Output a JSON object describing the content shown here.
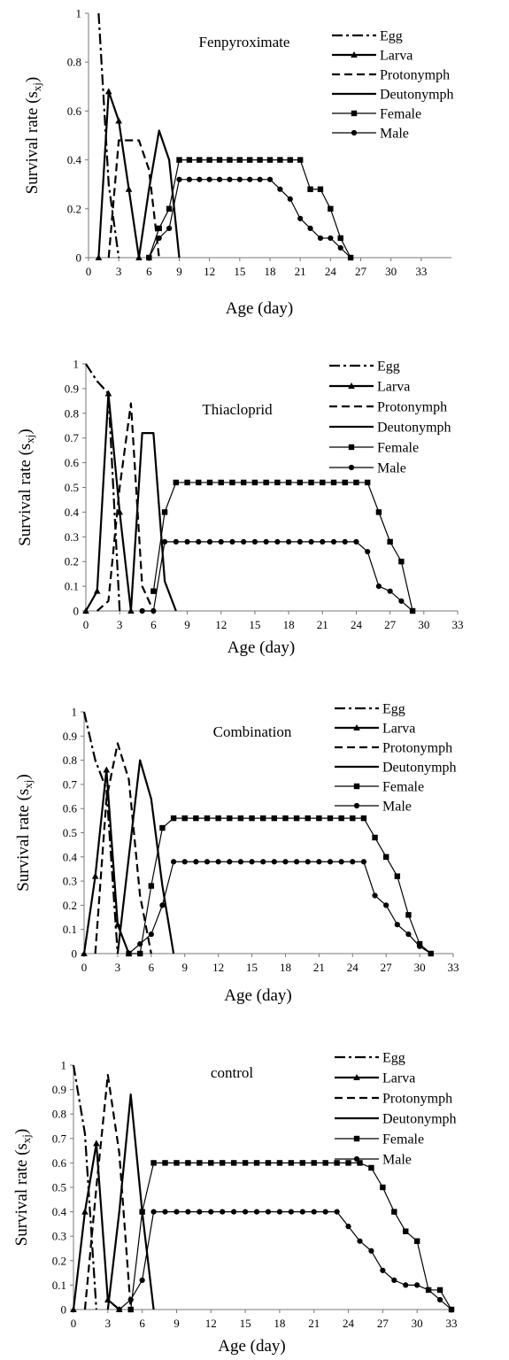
{
  "legend": [
    "Egg",
    "Larva",
    "Protonymph",
    "Deutonymph",
    "Female",
    "Male"
  ],
  "chart_data": [
    {
      "type": "line",
      "title": "Fenpyroximate",
      "xlabel": "Age (day)",
      "ylabel": "Survival rate (s_xj)",
      "xticks": [
        "0",
        "3",
        "6",
        "9",
        "12",
        "15",
        "18",
        "21",
        "24",
        "27",
        "30",
        "33"
      ],
      "yticks": [
        "0",
        "0.2",
        "0.4",
        "0.6",
        "0.8",
        "1"
      ],
      "xlim": [
        0,
        36
      ],
      "ylim": [
        0,
        1
      ],
      "series": [
        {
          "name": "Egg",
          "style": "dashdot",
          "marker": "none",
          "x": [
            1,
            2,
            3
          ],
          "y": [
            1.0,
            0.3,
            0.0
          ]
        },
        {
          "name": "Larva",
          "style": "solid",
          "marker": "triangle",
          "x": [
            1,
            2,
            3,
            4,
            5
          ],
          "y": [
            0.0,
            0.68,
            0.56,
            0.28,
            0.0
          ]
        },
        {
          "name": "Protonymph",
          "style": "dashed",
          "marker": "none",
          "x": [
            2,
            3,
            4,
            5,
            6,
            7
          ],
          "y": [
            0.0,
            0.48,
            0.48,
            0.48,
            0.36,
            0.0
          ]
        },
        {
          "name": "Deutonymph",
          "style": "solid",
          "marker": "none",
          "x": [
            5,
            6,
            7,
            8,
            9
          ],
          "y": [
            0.0,
            0.28,
            0.52,
            0.4,
            0.0
          ]
        },
        {
          "name": "Female",
          "style": "solid",
          "marker": "square",
          "x": [
            6,
            7,
            8,
            9,
            10,
            11,
            12,
            13,
            14,
            15,
            16,
            17,
            18,
            19,
            20,
            21,
            22,
            23,
            24,
            25,
            26
          ],
          "y": [
            0.0,
            0.12,
            0.2,
            0.4,
            0.4,
            0.4,
            0.4,
            0.4,
            0.4,
            0.4,
            0.4,
            0.4,
            0.4,
            0.4,
            0.4,
            0.4,
            0.28,
            0.28,
            0.2,
            0.08,
            0.0
          ]
        },
        {
          "name": "Male",
          "style": "solid",
          "marker": "circle",
          "x": [
            6,
            7,
            8,
            9,
            10,
            11,
            12,
            13,
            14,
            15,
            16,
            17,
            18,
            19,
            20,
            21,
            22,
            23,
            24,
            25,
            26
          ],
          "y": [
            0.0,
            0.08,
            0.12,
            0.32,
            0.32,
            0.32,
            0.32,
            0.32,
            0.32,
            0.32,
            0.32,
            0.32,
            0.32,
            0.28,
            0.24,
            0.16,
            0.12,
            0.08,
            0.08,
            0.04,
            0.0
          ]
        }
      ]
    },
    {
      "type": "line",
      "title": "Thiacloprid",
      "xlabel": "Age (day)",
      "ylabel": "Survival rate (s_xj)",
      "xticks": [
        "0",
        "3",
        "6",
        "9",
        "12",
        "15",
        "18",
        "21",
        "24",
        "27",
        "30",
        "33"
      ],
      "yticks": [
        "0",
        "0.1",
        "0.2",
        "0.3",
        "0.4",
        "0.5",
        "0.6",
        "0.7",
        "0.8",
        "0.9",
        "1"
      ],
      "xlim": [
        0,
        33
      ],
      "ylim": [
        0,
        1
      ],
      "series": [
        {
          "name": "Egg",
          "style": "dashdot",
          "marker": "none",
          "x": [
            0,
            1,
            2,
            3
          ],
          "y": [
            1.0,
            0.93,
            0.88,
            0.0
          ]
        },
        {
          "name": "Larva",
          "style": "solid",
          "marker": "triangle",
          "x": [
            0,
            1,
            2,
            3,
            4
          ],
          "y": [
            0.0,
            0.08,
            0.88,
            0.4,
            0.0
          ]
        },
        {
          "name": "Protonymph",
          "style": "dashed",
          "marker": "none",
          "x": [
            1,
            2,
            3,
            4,
            5,
            6
          ],
          "y": [
            0.0,
            0.04,
            0.5,
            0.84,
            0.1,
            0.0
          ]
        },
        {
          "name": "Deutonymph",
          "style": "solid",
          "marker": "none",
          "x": [
            4,
            5,
            6,
            7,
            8
          ],
          "y": [
            0.0,
            0.72,
            0.72,
            0.12,
            0.0
          ]
        },
        {
          "name": "Female",
          "style": "solid",
          "marker": "square",
          "x": [
            6,
            7,
            8,
            9,
            10,
            11,
            12,
            13,
            14,
            15,
            16,
            17,
            18,
            19,
            20,
            21,
            22,
            23,
            24,
            25,
            26,
            27,
            28,
            29
          ],
          "y": [
            0.08,
            0.4,
            0.52,
            0.52,
            0.52,
            0.52,
            0.52,
            0.52,
            0.52,
            0.52,
            0.52,
            0.52,
            0.52,
            0.52,
            0.52,
            0.52,
            0.52,
            0.52,
            0.52,
            0.52,
            0.4,
            0.28,
            0.2,
            0.0
          ]
        },
        {
          "name": "Male",
          "style": "solid",
          "marker": "circle",
          "x": [
            5,
            6,
            7,
            8,
            9,
            10,
            11,
            12,
            13,
            14,
            15,
            16,
            17,
            18,
            19,
            20,
            21,
            22,
            23,
            24,
            25,
            26,
            27,
            28,
            29
          ],
          "y": [
            0.0,
            0.0,
            0.28,
            0.28,
            0.28,
            0.28,
            0.28,
            0.28,
            0.28,
            0.28,
            0.28,
            0.28,
            0.28,
            0.28,
            0.28,
            0.28,
            0.28,
            0.28,
            0.28,
            0.28,
            0.24,
            0.1,
            0.08,
            0.04,
            0.0
          ]
        }
      ]
    },
    {
      "type": "line",
      "title": "Combination",
      "xlabel": "Age (day)",
      "ylabel": "Survival rate (s_xj)",
      "xticks": [
        "0",
        "3",
        "6",
        "9",
        "12",
        "15",
        "18",
        "21",
        "24",
        "27",
        "30",
        "33"
      ],
      "yticks": [
        "0",
        "0.1",
        "0.2",
        "0.3",
        "0.4",
        "0.5",
        "0.6",
        "0.7",
        "0.8",
        "0.9",
        "1"
      ],
      "xlim": [
        0,
        33
      ],
      "ylim": [
        0,
        1
      ],
      "series": [
        {
          "name": "Egg",
          "style": "dashdot",
          "marker": "none",
          "x": [
            0,
            1,
            2,
            3
          ],
          "y": [
            1.0,
            0.8,
            0.68,
            0.0
          ]
        },
        {
          "name": "Larva",
          "style": "solid",
          "marker": "triangle",
          "x": [
            0,
            1,
            2,
            3,
            4
          ],
          "y": [
            0.0,
            0.32,
            0.76,
            0.12,
            0.0
          ]
        },
        {
          "name": "Protonymph",
          "style": "dashed",
          "marker": "none",
          "x": [
            1,
            2,
            3,
            4,
            5,
            6
          ],
          "y": [
            0.0,
            0.64,
            0.87,
            0.72,
            0.24,
            0.0
          ]
        },
        {
          "name": "Deutonymph",
          "style": "solid",
          "marker": "none",
          "x": [
            3,
            4,
            5,
            6,
            7,
            8
          ],
          "y": [
            0.0,
            0.4,
            0.8,
            0.64,
            0.28,
            0.0
          ]
        },
        {
          "name": "Female",
          "style": "solid",
          "marker": "square",
          "x": [
            4,
            5,
            6,
            7,
            8,
            9,
            10,
            11,
            12,
            13,
            14,
            15,
            16,
            17,
            18,
            19,
            20,
            21,
            22,
            23,
            24,
            25,
            26,
            27,
            28,
            29,
            30,
            31
          ],
          "y": [
            0.0,
            0.0,
            0.28,
            0.52,
            0.56,
            0.56,
            0.56,
            0.56,
            0.56,
            0.56,
            0.56,
            0.56,
            0.56,
            0.56,
            0.56,
            0.56,
            0.56,
            0.56,
            0.56,
            0.56,
            0.56,
            0.56,
            0.48,
            0.4,
            0.32,
            0.16,
            0.04,
            0.0
          ]
        },
        {
          "name": "Male",
          "style": "solid",
          "marker": "circle",
          "x": [
            4,
            5,
            6,
            7,
            8,
            9,
            10,
            11,
            12,
            13,
            14,
            15,
            16,
            17,
            18,
            19,
            20,
            21,
            22,
            23,
            24,
            25,
            26,
            27,
            28,
            29,
            30,
            31
          ],
          "y": [
            0.0,
            0.04,
            0.08,
            0.2,
            0.38,
            0.38,
            0.38,
            0.38,
            0.38,
            0.38,
            0.38,
            0.38,
            0.38,
            0.38,
            0.38,
            0.38,
            0.38,
            0.38,
            0.38,
            0.38,
            0.38,
            0.38,
            0.24,
            0.2,
            0.12,
            0.08,
            0.03,
            0.0
          ]
        }
      ]
    },
    {
      "type": "line",
      "title": "control",
      "xlabel": "Age (day)",
      "ylabel": "Survival rate (s_xj)",
      "xticks": [
        "0",
        "3",
        "6",
        "9",
        "12",
        "15",
        "18",
        "21",
        "24",
        "27",
        "30",
        "33"
      ],
      "yticks": [
        "0",
        "0.1",
        "0.2",
        "0.3",
        "0.4",
        "0.5",
        "0.6",
        "0.7",
        "0.8",
        "0.9",
        "1"
      ],
      "xlim": [
        0,
        33
      ],
      "ylim": [
        0,
        1
      ],
      "series": [
        {
          "name": "Egg",
          "style": "dashdot",
          "marker": "none",
          "x": [
            0,
            1,
            2
          ],
          "y": [
            1.0,
            0.72,
            0.0
          ]
        },
        {
          "name": "Larva",
          "style": "solid",
          "marker": "triangle",
          "x": [
            0,
            1,
            2,
            3,
            4
          ],
          "y": [
            0.0,
            0.4,
            0.68,
            0.04,
            0.0
          ]
        },
        {
          "name": "Protonymph",
          "style": "dashed",
          "marker": "none",
          "x": [
            1,
            2,
            3,
            4,
            5
          ],
          "y": [
            0.0,
            0.5,
            0.96,
            0.64,
            0.0
          ]
        },
        {
          "name": "Deutonymph",
          "style": "solid",
          "marker": "none",
          "x": [
            3,
            4,
            5,
            6,
            7
          ],
          "y": [
            0.0,
            0.4,
            0.88,
            0.4,
            0.0
          ]
        },
        {
          "name": "Female",
          "style": "solid",
          "marker": "square",
          "x": [
            5,
            6,
            7,
            8,
            9,
            10,
            11,
            12,
            13,
            14,
            15,
            16,
            17,
            18,
            19,
            20,
            21,
            22,
            23,
            24,
            25,
            26,
            27,
            28,
            29,
            30,
            31,
            32,
            33
          ],
          "y": [
            0.0,
            0.4,
            0.6,
            0.6,
            0.6,
            0.6,
            0.6,
            0.6,
            0.6,
            0.6,
            0.6,
            0.6,
            0.6,
            0.6,
            0.6,
            0.6,
            0.6,
            0.6,
            0.6,
            0.6,
            0.6,
            0.58,
            0.5,
            0.4,
            0.32,
            0.28,
            0.08,
            0.08,
            0.0
          ]
        },
        {
          "name": "Male",
          "style": "solid",
          "marker": "circle",
          "x": [
            4,
            5,
            6,
            7,
            8,
            9,
            10,
            11,
            12,
            13,
            14,
            15,
            16,
            17,
            18,
            19,
            20,
            21,
            22,
            23,
            24,
            25,
            26,
            27,
            28,
            29,
            30,
            31,
            32,
            33
          ],
          "y": [
            0.0,
            0.04,
            0.12,
            0.4,
            0.4,
            0.4,
            0.4,
            0.4,
            0.4,
            0.4,
            0.4,
            0.4,
            0.4,
            0.4,
            0.4,
            0.4,
            0.4,
            0.4,
            0.4,
            0.4,
            0.34,
            0.28,
            0.24,
            0.16,
            0.12,
            0.1,
            0.1,
            0.08,
            0.04,
            0.0
          ]
        }
      ]
    }
  ]
}
